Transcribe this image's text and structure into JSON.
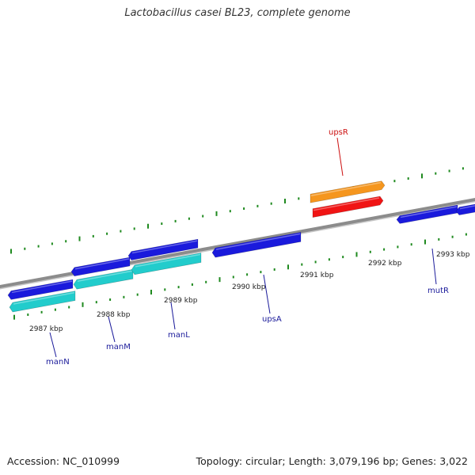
{
  "title": "Lactobacillus casei BL23, complete genome",
  "footer": {
    "accession": "Accession: NC_010999",
    "summary": "Topology: circular; Length: 3,079,196 bp; Genes: 3,022"
  },
  "colors": {
    "backbone": "#8c8c8c",
    "tick": "#1f8a1f",
    "gene_plus": "#1a1adc",
    "gene_minus": "#1a1adc",
    "cds_teal": "#22cccc",
    "cds_orange": "#f5961e",
    "gene_red": "#f01414",
    "label_blue": "#1a1a9a",
    "label_red": "#cc1010"
  },
  "tick_labels": [
    "2987 kbp",
    "2988 kbp",
    "2989 kbp",
    "2990 kbp",
    "2991 kbp",
    "2992 kbp",
    "2993 kbp"
  ],
  "gene_labels": [
    {
      "name": "manN",
      "color": "label_blue"
    },
    {
      "name": "manM",
      "color": "label_blue"
    },
    {
      "name": "manL",
      "color": "label_blue"
    },
    {
      "name": "upsA",
      "color": "label_blue"
    },
    {
      "name": "upsR",
      "color": "label_red"
    },
    {
      "name": "mutR",
      "color": "label_blue"
    }
  ]
}
